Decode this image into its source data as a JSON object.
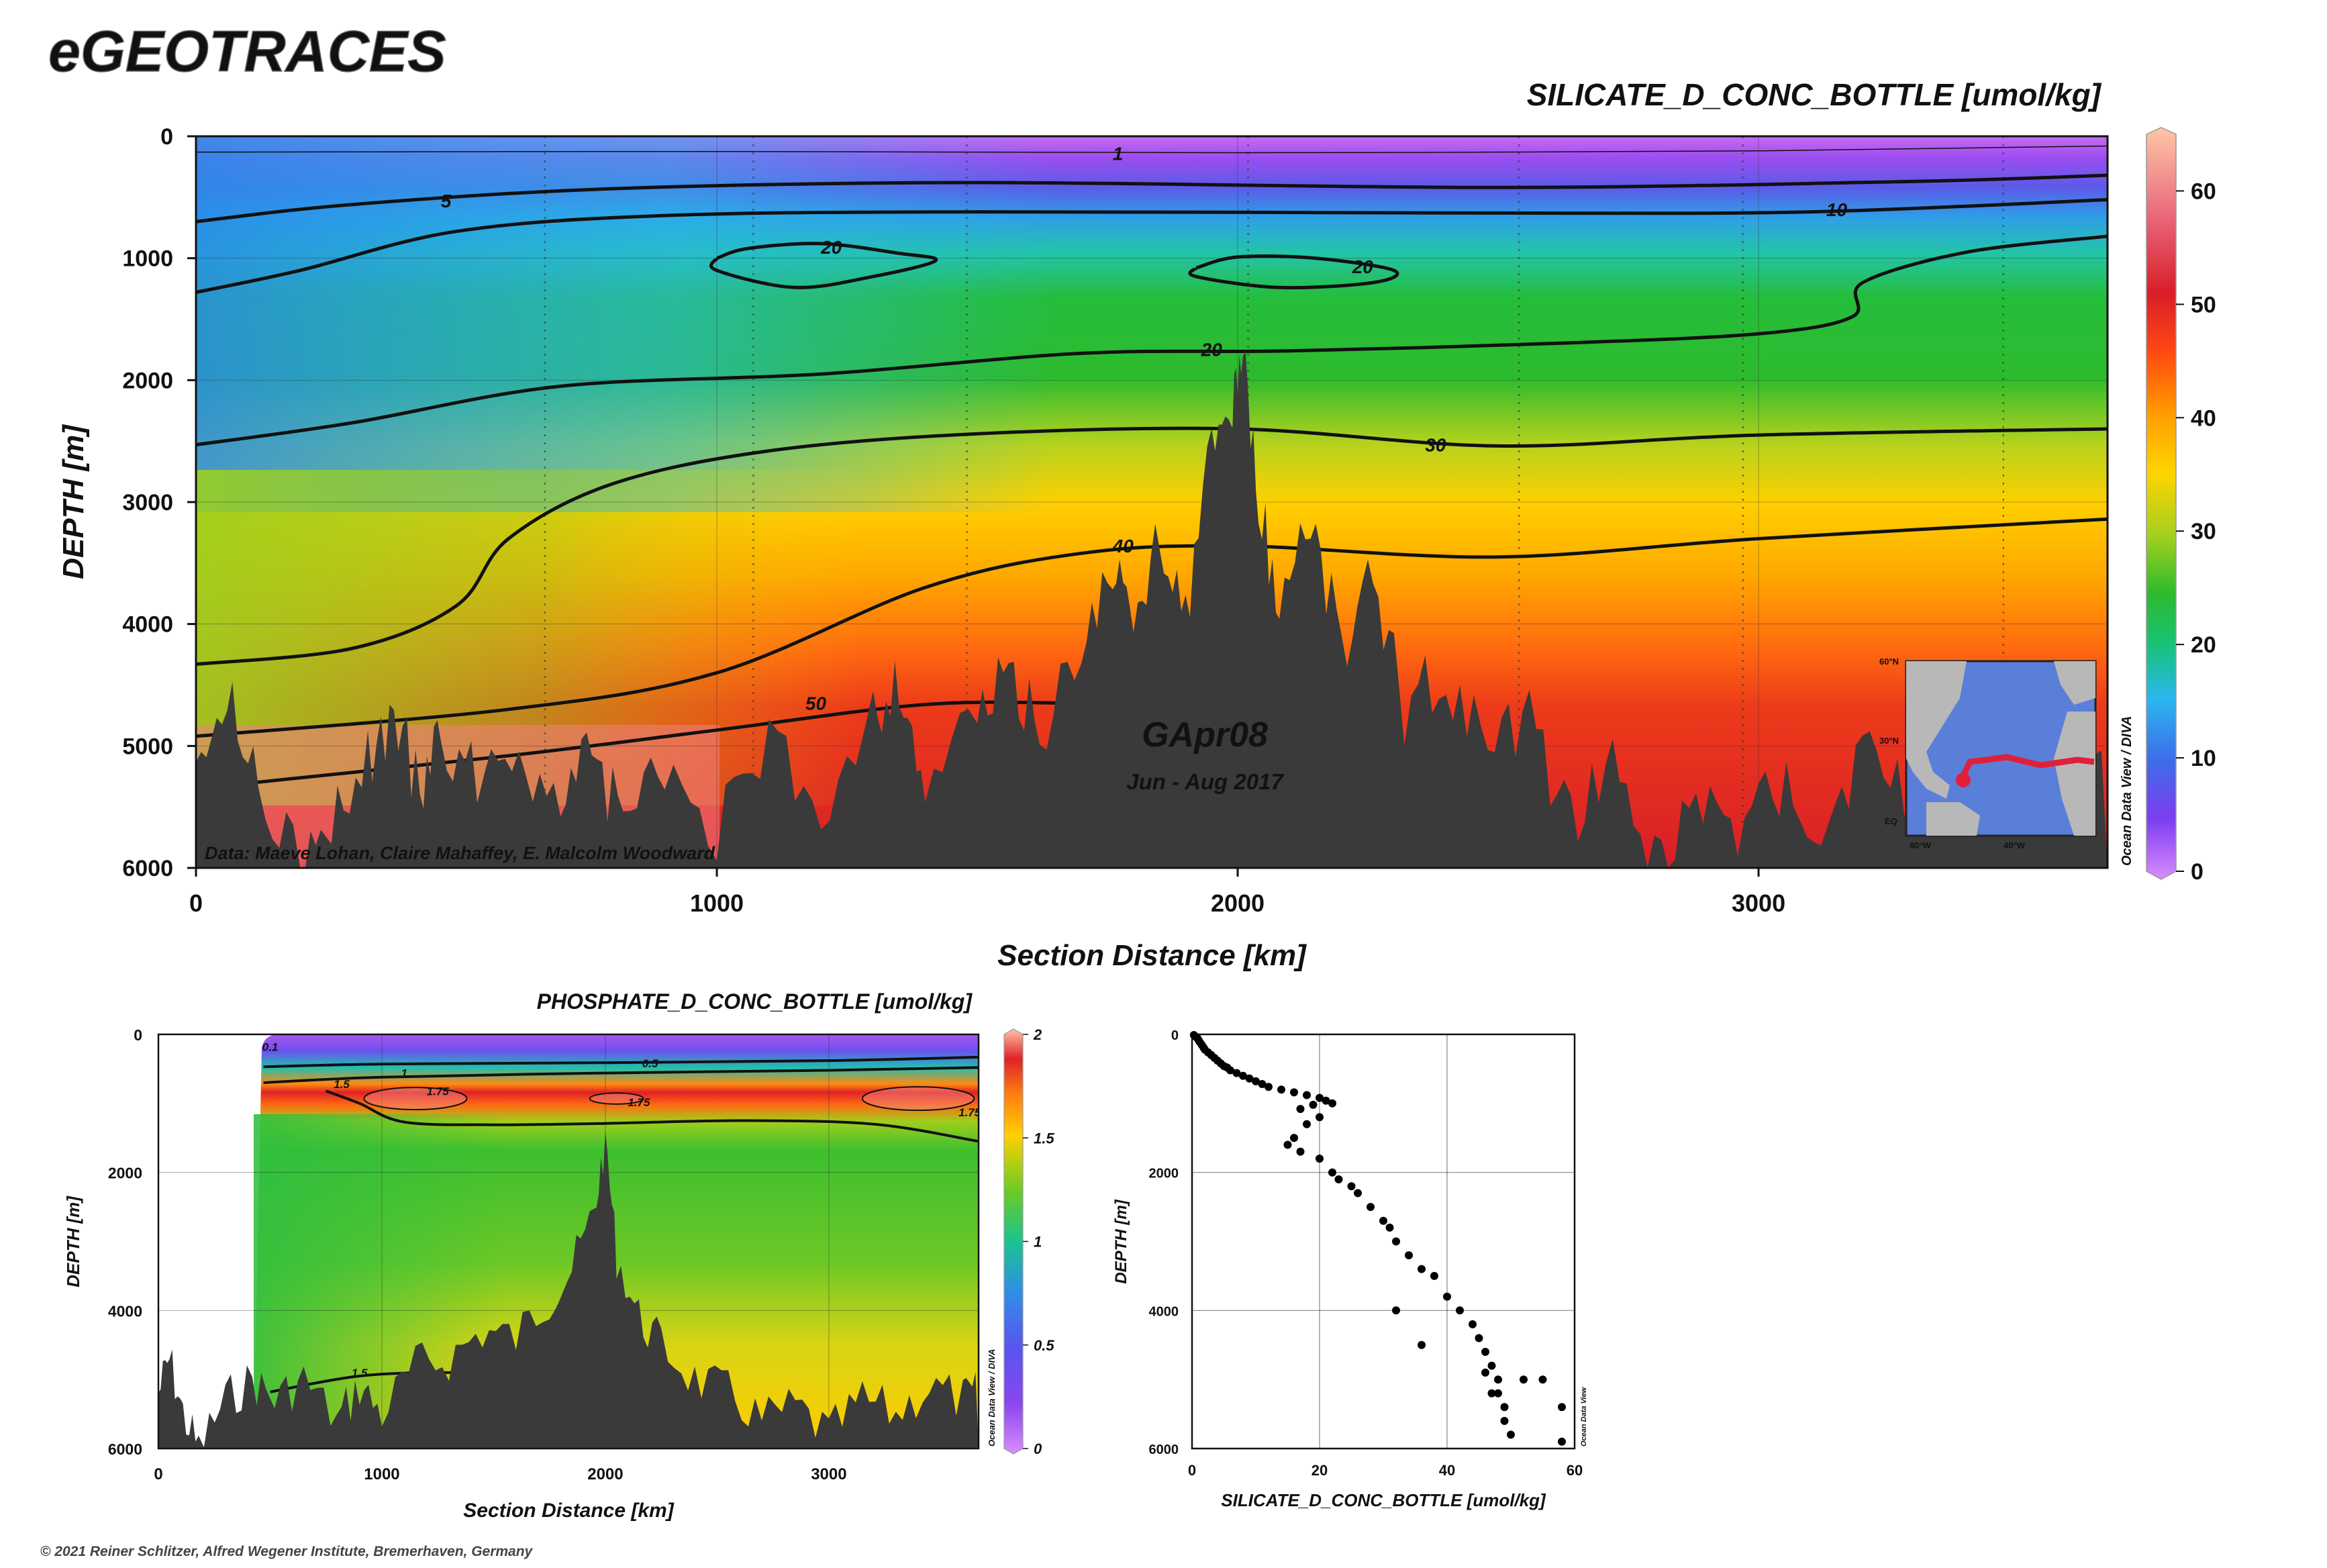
{
  "brand": "eGEOTRACES",
  "copyright": "© 2021 Reiner Schlitzer, Alfred Wegener Institute, Bremerhaven, Germany",
  "chart_data": [
    {
      "type": "heatmap",
      "title": "SILICATE_D_CONC_BOTTLE [umol/kg]",
      "xlabel": "Section Distance [km]",
      "ylabel": "DEPTH [m]",
      "xlim": [
        0,
        3670
      ],
      "ylim": [
        6000,
        0
      ],
      "x_ticks": [
        "0",
        "1000",
        "2000",
        "3000"
      ],
      "y_ticks": [
        "0",
        "1000",
        "2000",
        "3000",
        "4000",
        "5000",
        "6000"
      ],
      "colorbar": {
        "min": 0,
        "max": 65,
        "ticks": [
          "0",
          "10",
          "20",
          "30",
          "40",
          "50",
          "60"
        ],
        "credit": "Ocean Data View / DIVA"
      },
      "contour_labels": [
        "1",
        "5",
        "10",
        "20",
        "20",
        "20",
        "30",
        "40",
        "50"
      ],
      "cruise": "GApr08",
      "period": "Jun - Aug 2017",
      "credit": "Data: Maeve Lohan, Claire Mahaffey, E. Malcolm Woodward",
      "inset_map": {
        "lat_labels": [
          "60°N",
          "30°N",
          "EQ"
        ],
        "lon_labels": [
          "80°W",
          "40°W"
        ],
        "track_color": "#e0203a"
      },
      "contours": [
        {
          "level": "1",
          "points": [
            [
              0,
              130
            ],
            [
              1000,
              125
            ],
            [
              2000,
              135
            ],
            [
              3000,
              120
            ],
            [
              3670,
              80
            ]
          ]
        },
        {
          "level": "5",
          "points": [
            [
              0,
              700
            ],
            [
              300,
              560
            ],
            [
              800,
              430
            ],
            [
              1500,
              380
            ],
            [
              2500,
              420
            ],
            [
              3300,
              370
            ],
            [
              3670,
              320
            ]
          ]
        },
        {
          "level": "10",
          "points": [
            [
              0,
              1280
            ],
            [
              200,
              1100
            ],
            [
              500,
              780
            ],
            [
              900,
              650
            ],
            [
              1500,
              620
            ],
            [
              2500,
              630
            ],
            [
              3100,
              620
            ],
            [
              3670,
              520
            ]
          ]
        },
        {
          "level": "20",
          "points": [
            [
              1000,
              1000
            ],
            [
              1060,
              920
            ],
            [
              1200,
              880
            ],
            [
              1350,
              960
            ],
            [
              1420,
              1020
            ],
            [
              1300,
              1150
            ],
            [
              1150,
              1240
            ],
            [
              1000,
              1100
            ],
            [
              1000,
              1000
            ]
          ]
        },
        {
          "level": "20",
          "points": [
            [
              1920,
              1080
            ],
            [
              2000,
              990
            ],
            [
              2150,
              1000
            ],
            [
              2300,
              1100
            ],
            [
              2260,
              1200
            ],
            [
              2080,
              1240
            ],
            [
              1920,
              1150
            ],
            [
              1920,
              1080
            ]
          ]
        },
        {
          "level": "20",
          "points": [
            [
              0,
              2530
            ],
            [
              300,
              2350
            ],
            [
              700,
              2050
            ],
            [
              1200,
              1950
            ],
            [
              1700,
              1780
            ],
            [
              2100,
              1760
            ],
            [
              2600,
              1700
            ],
            [
              3000,
              1620
            ],
            [
              3180,
              1480
            ],
            [
              3200,
              1200
            ],
            [
              3400,
              950
            ],
            [
              3670,
              820
            ]
          ]
        },
        {
          "level": "30",
          "points": [
            [
              0,
              4330
            ],
            [
              300,
              4200
            ],
            [
              500,
              3850
            ],
            [
              600,
              3300
            ],
            [
              800,
              2850
            ],
            [
              1100,
              2580
            ],
            [
              1500,
              2440
            ],
            [
              2000,
              2400
            ],
            [
              2500,
              2540
            ],
            [
              3000,
              2450
            ],
            [
              3670,
              2400
            ]
          ]
        },
        {
          "level": "40",
          "points": [
            [
              0,
              4920
            ],
            [
              600,
              4700
            ],
            [
              1000,
              4400
            ],
            [
              1400,
              3700
            ],
            [
              1700,
              3420
            ],
            [
              2000,
              3360
            ],
            [
              2500,
              3450
            ],
            [
              3000,
              3300
            ],
            [
              3670,
              3140
            ]
          ]
        },
        {
          "level": "50",
          "points": [
            [
              0,
              5350
            ],
            [
              600,
              5080
            ],
            [
              1000,
              4870
            ],
            [
              1400,
              4660
            ],
            [
              1700,
              4650
            ]
          ]
        }
      ]
    },
    {
      "type": "heatmap",
      "title": "PHOSPHATE_D_CONC_BOTTLE [umol/kg]",
      "xlabel": "Section Distance [km]",
      "ylabel": "DEPTH [m]",
      "xlim": [
        0,
        3670
      ],
      "ylim": [
        6000,
        0
      ],
      "x_ticks": [
        "0",
        "1000",
        "2000",
        "3000"
      ],
      "y_ticks": [
        "0",
        "2000",
        "4000",
        "6000"
      ],
      "colorbar": {
        "min": 0,
        "max": 2,
        "ticks": [
          "0",
          "0.5",
          "1",
          "1.5",
          "2"
        ],
        "credit": "Ocean Data View / DIVA"
      },
      "contour_labels": [
        "0.1",
        "0.5",
        "1",
        "1.5",
        "1.75",
        "1.75",
        "1.75",
        "1.5"
      ],
      "contours": [
        {
          "level": "0.5",
          "points": [
            [
              470,
              470
            ],
            [
              1000,
              430
            ],
            [
              2000,
              410
            ],
            [
              3000,
              380
            ],
            [
              3670,
              330
            ]
          ]
        },
        {
          "level": "1",
          "points": [
            [
              470,
              700
            ],
            [
              1000,
              620
            ],
            [
              2000,
              560
            ],
            [
              3000,
              520
            ],
            [
              3670,
              480
            ]
          ]
        },
        {
          "level": "1.5",
          "points": [
            [
              750,
              820
            ],
            [
              900,
              1000
            ],
            [
              1100,
              1270
            ],
            [
              1500,
              1310
            ],
            [
              2000,
              1290
            ],
            [
              2600,
              1250
            ],
            [
              3200,
              1300
            ],
            [
              3670,
              1550
            ]
          ]
        },
        {
          "level": "1.5",
          "points": [
            [
              500,
              5180
            ],
            [
              900,
              4950
            ],
            [
              1300,
              4900
            ],
            [
              1700,
              4950
            ]
          ]
        }
      ]
    },
    {
      "type": "scatter",
      "xlabel": "SILICATE_D_CONC_BOTTLE [umol/kg]",
      "ylabel": "DEPTH [m]",
      "xlim": [
        0,
        60
      ],
      "ylim": [
        6000,
        0
      ],
      "x_ticks": [
        "0",
        "20",
        "40",
        "60"
      ],
      "y_ticks": [
        "0",
        "2000",
        "4000",
        "6000"
      ],
      "credit": "Ocean Data View",
      "points": [
        [
          0.3,
          10
        ],
        [
          0.5,
          30
        ],
        [
          0.8,
          50
        ],
        [
          1,
          80
        ],
        [
          1.2,
          110
        ],
        [
          1.5,
          150
        ],
        [
          1.8,
          190
        ],
        [
          2,
          220
        ],
        [
          2.5,
          260
        ],
        [
          3,
          300
        ],
        [
          3.5,
          340
        ],
        [
          4,
          380
        ],
        [
          4.5,
          420
        ],
        [
          5,
          460
        ],
        [
          5.5,
          480
        ],
        [
          6,
          520
        ],
        [
          7,
          560
        ],
        [
          8,
          600
        ],
        [
          9,
          640
        ],
        [
          10,
          680
        ],
        [
          11,
          720
        ],
        [
          12,
          760
        ],
        [
          14,
          800
        ],
        [
          16,
          840
        ],
        [
          18,
          880
        ],
        [
          20,
          920
        ],
        [
          21,
          960
        ],
        [
          22,
          1000
        ],
        [
          19,
          1020
        ],
        [
          17,
          1080
        ],
        [
          20,
          1200
        ],
        [
          18,
          1300
        ],
        [
          16,
          1500
        ],
        [
          15,
          1600
        ],
        [
          17,
          1700
        ],
        [
          20,
          1800
        ],
        [
          22,
          2000
        ],
        [
          23,
          2100
        ],
        [
          25,
          2200
        ],
        [
          26,
          2300
        ],
        [
          28,
          2500
        ],
        [
          30,
          2700
        ],
        [
          31,
          2800
        ],
        [
          32,
          3000
        ],
        [
          34,
          3200
        ],
        [
          36,
          3400
        ],
        [
          38,
          3500
        ],
        [
          40,
          3800
        ],
        [
          42,
          4000
        ],
        [
          44,
          4200
        ],
        [
          45,
          4400
        ],
        [
          46,
          4600
        ],
        [
          47,
          4800
        ],
        [
          48,
          5000
        ],
        [
          48,
          5200
        ],
        [
          49,
          5400
        ],
        [
          49,
          5600
        ],
        [
          50,
          5800
        ],
        [
          32,
          4000
        ],
        [
          36,
          4500
        ],
        [
          52,
          5000
        ],
        [
          55,
          5000
        ],
        [
          58,
          5400
        ],
        [
          58,
          5900
        ],
        [
          46,
          4900
        ],
        [
          47,
          5200
        ]
      ]
    }
  ]
}
